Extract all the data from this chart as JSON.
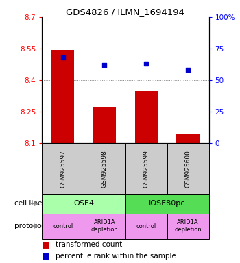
{
  "title": "GDS4826 / ILMN_1694194",
  "samples": [
    "GSM925597",
    "GSM925598",
    "GSM925599",
    "GSM925600"
  ],
  "bar_values": [
    8.545,
    8.275,
    8.35,
    8.145
  ],
  "bar_bottom": 8.1,
  "scatter_values": [
    68,
    62,
    63,
    58
  ],
  "ylim_left": [
    8.1,
    8.7
  ],
  "ylim_right": [
    0,
    100
  ],
  "yticks_left": [
    8.1,
    8.25,
    8.4,
    8.55,
    8.7
  ],
  "yticks_right": [
    0,
    25,
    50,
    75,
    100
  ],
  "ytick_labels_left": [
    "8.1",
    "8.25",
    "8.4",
    "8.55",
    "8.7"
  ],
  "ytick_labels_right": [
    "0",
    "25",
    "50",
    "75",
    "100%"
  ],
  "bar_color": "#cc0000",
  "scatter_color": "#0000cc",
  "cell_line_color_ose4": "#aaffaa",
  "cell_line_color_iose": "#55dd55",
  "protocol_color_light": "#ee99ee",
  "protocol_color_dark": "#cc77cc",
  "cell_lines": [
    "OSE4",
    "IOSE80pc"
  ],
  "protocols": [
    "control",
    "ARID1A\ndepletion",
    "control",
    "ARID1A\ndepletion"
  ],
  "cell_line_spans": [
    [
      0,
      2
    ],
    [
      2,
      4
    ]
  ],
  "legend_red": "transformed count",
  "legend_blue": "percentile rank within the sample",
  "label_cell_line": "cell line",
  "label_protocol": "protocol",
  "grid_color": "#888888",
  "background_color": "#ffffff",
  "sample_box_color": "#cccccc"
}
